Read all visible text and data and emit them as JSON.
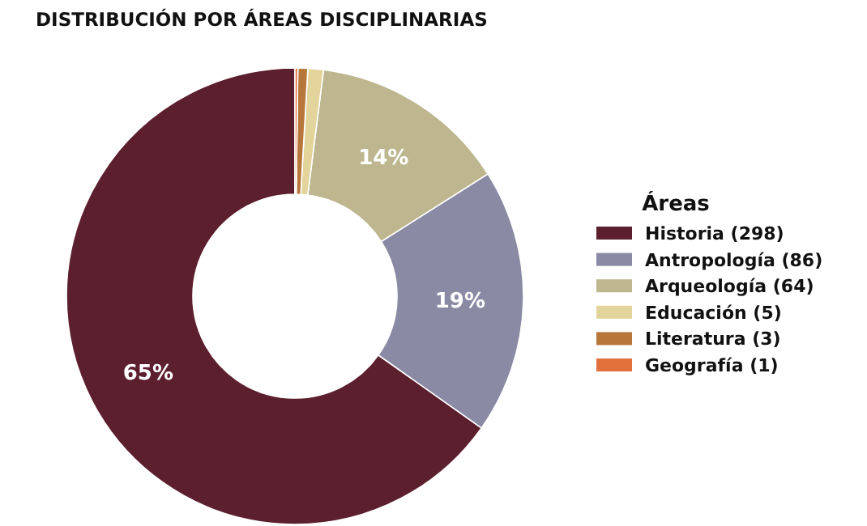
{
  "chart_data": {
    "type": "donut",
    "title": "DISTRIBUCIÓN POR ÁREAS DISCIPLINARIAS",
    "legend_title": "Áreas",
    "categories": [
      "Historia (298)",
      "Antropología (86)",
      "Arqueología (64)",
      "Educación (5)",
      "Literatura (3)",
      "Geografía (1)"
    ],
    "values": [
      65.2,
      18.8,
      14.0,
      1.1,
      0.7,
      0.2
    ],
    "colors": [
      "#5c1f2e",
      "#8a8aa5",
      "#bdb68f",
      "#e2d49a",
      "#b8773a",
      "#e2703a"
    ],
    "value_labels": [
      "65%",
      "19%",
      "14%",
      null,
      null,
      null
    ],
    "legend": "right"
  }
}
